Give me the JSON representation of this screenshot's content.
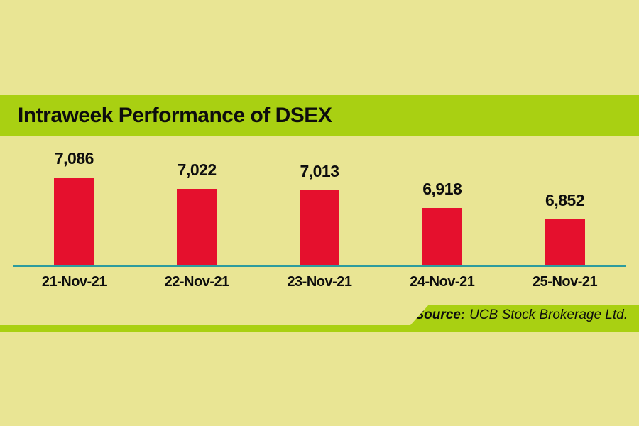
{
  "title": "Intraweek Performance of DSEX",
  "source": {
    "prefix": "Source:",
    "text": "UCB Stock Brokerage Ltd."
  },
  "colors": {
    "background": "#e9e594",
    "band_green": "#a9d012",
    "bar_red": "#e5102d",
    "baseline_teal": "#2d9c9e",
    "text_black": "#0d0d0d"
  },
  "chart_data": {
    "type": "bar",
    "title": "Intraweek Performance of DSEX",
    "categories": [
      "21-Nov-21",
      "22-Nov-21",
      "23-Nov-21",
      "24-Nov-21",
      "25-Nov-21"
    ],
    "values": [
      7086,
      7022,
      7013,
      6918,
      6852
    ],
    "value_labels": [
      "7,086",
      "7,022",
      "7,013",
      "6,918",
      "6,852"
    ],
    "xlabel": "",
    "ylabel": "",
    "ylim": [
      6600,
      7150
    ],
    "grid": false,
    "legend": false,
    "bar_color": "#e5102d",
    "annotations": [
      "Source: UCB Stock Brokerage Ltd."
    ]
  }
}
